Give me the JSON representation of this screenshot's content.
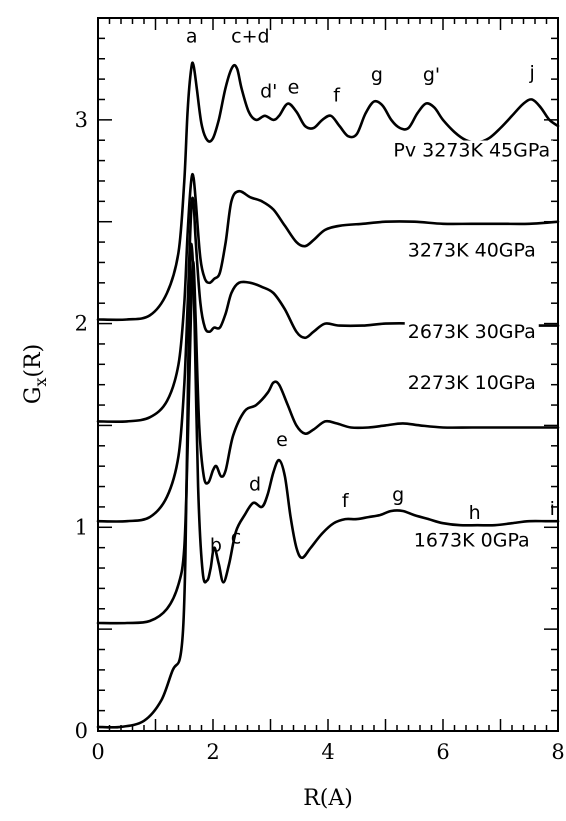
{
  "chart_data": {
    "type": "line",
    "title": "",
    "xlabel": "R(A)",
    "ylabel": "G",
    "ylabel_sub": "x",
    "ylabel_tail": "(R)",
    "xlim": [
      0,
      8
    ],
    "ylim": [
      0,
      3.5
    ],
    "xticks": [
      "0",
      "2",
      "4",
      "6",
      "8"
    ],
    "yticks": [
      "0",
      "1",
      "2",
      "3"
    ],
    "series": [
      {
        "name": "1673K 0GPa",
        "annotation": {
          "text": "1673K 0GPa",
          "x": 6.5,
          "y": 0.905
        },
        "points": [
          [
            0.0,
            0.02
          ],
          [
            0.4,
            0.02
          ],
          [
            0.8,
            0.05
          ],
          [
            1.1,
            0.15
          ],
          [
            1.3,
            0.3
          ],
          [
            1.42,
            0.35
          ],
          [
            1.48,
            0.5
          ],
          [
            1.52,
            0.85
          ],
          [
            1.56,
            1.6
          ],
          [
            1.6,
            2.3
          ],
          [
            1.64,
            2.35
          ],
          [
            1.68,
            2.0
          ],
          [
            1.74,
            1.2
          ],
          [
            1.82,
            0.78
          ],
          [
            1.9,
            0.74
          ],
          [
            1.96,
            0.8
          ],
          [
            2.02,
            0.9
          ],
          [
            2.1,
            0.82
          ],
          [
            2.18,
            0.73
          ],
          [
            2.28,
            0.82
          ],
          [
            2.4,
            0.98
          ],
          [
            2.55,
            1.06
          ],
          [
            2.7,
            1.12
          ],
          [
            2.85,
            1.1
          ],
          [
            2.95,
            1.16
          ],
          [
            3.05,
            1.27
          ],
          [
            3.15,
            1.33
          ],
          [
            3.25,
            1.25
          ],
          [
            3.35,
            1.05
          ],
          [
            3.45,
            0.9
          ],
          [
            3.55,
            0.85
          ],
          [
            3.7,
            0.9
          ],
          [
            3.9,
            0.97
          ],
          [
            4.1,
            1.02
          ],
          [
            4.3,
            1.04
          ],
          [
            4.5,
            1.04
          ],
          [
            4.7,
            1.05
          ],
          [
            4.9,
            1.06
          ],
          [
            5.1,
            1.08
          ],
          [
            5.3,
            1.08
          ],
          [
            5.5,
            1.06
          ],
          [
            5.75,
            1.04
          ],
          [
            6.0,
            1.02
          ],
          [
            6.3,
            1.01
          ],
          [
            6.6,
            1.01
          ],
          [
            6.9,
            1.01
          ],
          [
            7.2,
            1.02
          ],
          [
            7.5,
            1.03
          ],
          [
            7.8,
            1.03
          ],
          [
            8.0,
            1.03
          ]
        ]
      },
      {
        "name": "2273K 10GPa",
        "annotation": {
          "text": "2273K 10GPa",
          "x": 6.5,
          "y": 1.68
        },
        "points": [
          [
            0.0,
            0.53
          ],
          [
            0.5,
            0.53
          ],
          [
            0.9,
            0.54
          ],
          [
            1.2,
            0.6
          ],
          [
            1.4,
            0.72
          ],
          [
            1.5,
            0.9
          ],
          [
            1.56,
            1.4
          ],
          [
            1.62,
            2.1
          ],
          [
            1.66,
            2.3
          ],
          [
            1.7,
            2.0
          ],
          [
            1.76,
            1.5
          ],
          [
            1.84,
            1.25
          ],
          [
            1.92,
            1.22
          ],
          [
            2.0,
            1.28
          ],
          [
            2.06,
            1.3
          ],
          [
            2.14,
            1.25
          ],
          [
            2.22,
            1.28
          ],
          [
            2.35,
            1.45
          ],
          [
            2.55,
            1.57
          ],
          [
            2.75,
            1.6
          ],
          [
            2.95,
            1.66
          ],
          [
            3.05,
            1.71
          ],
          [
            3.15,
            1.7
          ],
          [
            3.3,
            1.6
          ],
          [
            3.45,
            1.5
          ],
          [
            3.6,
            1.46
          ],
          [
            3.75,
            1.48
          ],
          [
            3.95,
            1.52
          ],
          [
            4.15,
            1.51
          ],
          [
            4.4,
            1.49
          ],
          [
            4.7,
            1.49
          ],
          [
            5.0,
            1.5
          ],
          [
            5.3,
            1.51
          ],
          [
            5.6,
            1.5
          ],
          [
            6.0,
            1.49
          ],
          [
            6.5,
            1.49
          ],
          [
            7.0,
            1.49
          ],
          [
            7.5,
            1.49
          ],
          [
            8.0,
            1.49
          ]
        ]
      },
      {
        "name": "2673K 30GPa",
        "annotation": {
          "text": "2673K 30GPa",
          "x": 6.5,
          "y": 1.93
        },
        "points": [
          [
            0.0,
            1.03
          ],
          [
            0.5,
            1.03
          ],
          [
            0.9,
            1.05
          ],
          [
            1.2,
            1.15
          ],
          [
            1.4,
            1.35
          ],
          [
            1.5,
            1.7
          ],
          [
            1.56,
            2.1
          ],
          [
            1.62,
            2.55
          ],
          [
            1.66,
            2.6
          ],
          [
            1.7,
            2.4
          ],
          [
            1.78,
            2.1
          ],
          [
            1.86,
            1.98
          ],
          [
            1.94,
            1.96
          ],
          [
            2.02,
            1.98
          ],
          [
            2.12,
            1.98
          ],
          [
            2.22,
            2.05
          ],
          [
            2.32,
            2.15
          ],
          [
            2.45,
            2.2
          ],
          [
            2.65,
            2.2
          ],
          [
            2.85,
            2.18
          ],
          [
            3.05,
            2.15
          ],
          [
            3.25,
            2.07
          ],
          [
            3.45,
            1.96
          ],
          [
            3.6,
            1.93
          ],
          [
            3.75,
            1.96
          ],
          [
            3.95,
            2.0
          ],
          [
            4.2,
            1.99
          ],
          [
            4.6,
            1.99
          ],
          [
            5.0,
            2.0
          ],
          [
            5.5,
            2.0
          ],
          [
            6.0,
            1.99
          ],
          [
            6.5,
            1.99
          ],
          [
            7.0,
            1.99
          ],
          [
            7.5,
            1.99
          ],
          [
            8.0,
            1.99
          ]
        ]
      },
      {
        "name": "3273K 40GPa",
        "annotation": {
          "text": "3273K 40GPa",
          "x": 6.5,
          "y": 2.33
        },
        "points": [
          [
            0.0,
            1.52
          ],
          [
            0.5,
            1.52
          ],
          [
            0.9,
            1.54
          ],
          [
            1.2,
            1.62
          ],
          [
            1.4,
            1.8
          ],
          [
            1.5,
            2.1
          ],
          [
            1.56,
            2.45
          ],
          [
            1.62,
            2.7
          ],
          [
            1.66,
            2.72
          ],
          [
            1.7,
            2.6
          ],
          [
            1.78,
            2.32
          ],
          [
            1.86,
            2.22
          ],
          [
            1.94,
            2.2
          ],
          [
            2.02,
            2.22
          ],
          [
            2.12,
            2.25
          ],
          [
            2.22,
            2.4
          ],
          [
            2.32,
            2.6
          ],
          [
            2.45,
            2.65
          ],
          [
            2.65,
            2.62
          ],
          [
            2.85,
            2.6
          ],
          [
            3.05,
            2.56
          ],
          [
            3.25,
            2.48
          ],
          [
            3.45,
            2.4
          ],
          [
            3.6,
            2.38
          ],
          [
            3.75,
            2.41
          ],
          [
            3.95,
            2.46
          ],
          [
            4.2,
            2.48
          ],
          [
            4.6,
            2.49
          ],
          [
            5.0,
            2.5
          ],
          [
            5.5,
            2.5
          ],
          [
            6.0,
            2.49
          ],
          [
            6.5,
            2.49
          ],
          [
            7.0,
            2.49
          ],
          [
            7.5,
            2.49
          ],
          [
            8.0,
            2.5
          ]
        ]
      },
      {
        "name": "Pv 3273K 45GPa",
        "annotation": {
          "text": "Pv 3273K 45GPa",
          "x": 6.5,
          "y": 2.82
        },
        "points": [
          [
            0.0,
            2.02
          ],
          [
            0.5,
            2.02
          ],
          [
            0.9,
            2.04
          ],
          [
            1.2,
            2.15
          ],
          [
            1.4,
            2.35
          ],
          [
            1.5,
            2.7
          ],
          [
            1.56,
            3.05
          ],
          [
            1.62,
            3.25
          ],
          [
            1.66,
            3.27
          ],
          [
            1.72,
            3.15
          ],
          [
            1.8,
            2.98
          ],
          [
            1.9,
            2.9
          ],
          [
            2.0,
            2.91
          ],
          [
            2.1,
            3.0
          ],
          [
            2.22,
            3.16
          ],
          [
            2.34,
            3.26
          ],
          [
            2.42,
            3.25
          ],
          [
            2.5,
            3.15
          ],
          [
            2.62,
            3.04
          ],
          [
            2.75,
            3.0
          ],
          [
            2.9,
            3.02
          ],
          [
            3.05,
            3.0
          ],
          [
            3.15,
            3.02
          ],
          [
            3.3,
            3.08
          ],
          [
            3.45,
            3.04
          ],
          [
            3.6,
            2.97
          ],
          [
            3.75,
            2.96
          ],
          [
            3.9,
            3.0
          ],
          [
            4.05,
            3.02
          ],
          [
            4.2,
            2.97
          ],
          [
            4.35,
            2.92
          ],
          [
            4.5,
            2.93
          ],
          [
            4.65,
            3.03
          ],
          [
            4.8,
            3.09
          ],
          [
            4.95,
            3.07
          ],
          [
            5.1,
            3.0
          ],
          [
            5.25,
            2.96
          ],
          [
            5.4,
            2.96
          ],
          [
            5.55,
            3.03
          ],
          [
            5.7,
            3.08
          ],
          [
            5.85,
            3.06
          ],
          [
            6.0,
            3.0
          ],
          [
            6.2,
            2.94
          ],
          [
            6.4,
            2.9
          ],
          [
            6.6,
            2.89
          ],
          [
            6.8,
            2.91
          ],
          [
            7.0,
            2.96
          ],
          [
            7.2,
            3.02
          ],
          [
            7.4,
            3.08
          ],
          [
            7.55,
            3.1
          ],
          [
            7.7,
            3.06
          ],
          [
            7.85,
            3.0
          ],
          [
            8.0,
            2.97
          ]
        ]
      }
    ],
    "peak_labels": [
      {
        "text": "a",
        "x": 1.63,
        "y": 3.38
      },
      {
        "text": "c+d",
        "x": 2.65,
        "y": 3.38
      },
      {
        "text": "d'",
        "x": 2.97,
        "y": 3.11
      },
      {
        "text": "e",
        "x": 3.4,
        "y": 3.13
      },
      {
        "text": "f",
        "x": 4.15,
        "y": 3.09
      },
      {
        "text": "g",
        "x": 4.85,
        "y": 3.19
      },
      {
        "text": "g'",
        "x": 5.8,
        "y": 3.19
      },
      {
        "text": "j",
        "x": 7.55,
        "y": 3.2
      },
      {
        "text": "b",
        "x": 2.05,
        "y": 0.88
      },
      {
        "text": "c",
        "x": 2.4,
        "y": 0.92
      },
      {
        "text": "d",
        "x": 2.73,
        "y": 1.18
      },
      {
        "text": "e",
        "x": 3.2,
        "y": 1.4
      },
      {
        "text": "f",
        "x": 4.3,
        "y": 1.1
      },
      {
        "text": "g",
        "x": 5.22,
        "y": 1.13
      },
      {
        "text": "h",
        "x": 6.55,
        "y": 1.04
      },
      {
        "text": "i",
        "x": 7.9,
        "y": 1.06
      }
    ]
  }
}
